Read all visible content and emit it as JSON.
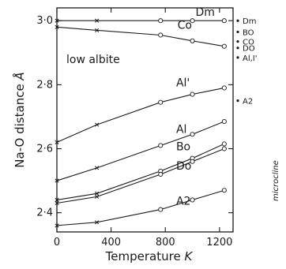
{
  "chart_data": {
    "type": "line",
    "xlabel": "Temperature",
    "xlabel_unit": "K",
    "ylabel": "Na-O distance",
    "ylabel_unit": "Å",
    "xlim": [
      0,
      1300
    ],
    "ylim": [
      2.34,
      3.04
    ],
    "x_ticks": [
      0,
      400,
      800,
      1200
    ],
    "x_tick_labels": [
      "0",
      "400",
      "800",
      "1200"
    ],
    "y_ticks": [
      2.4,
      2.6,
      2.8,
      3.0
    ],
    "y_tick_labels": [
      "2·4",
      "2·6",
      "2·8",
      "3·0"
    ],
    "annotation": "low albite",
    "right_axis_label": "microcline",
    "x": [
      0,
      295,
      765,
      1000,
      1235
    ],
    "series": [
      {
        "name": "Dm",
        "values": [
          3.0,
          3.0,
          3.0,
          3.0,
          3.0
        ],
        "markers": [
          "x",
          "x",
          "o",
          "o",
          "o"
        ]
      },
      {
        "name": "Co",
        "values": [
          2.98,
          2.97,
          2.955,
          2.937,
          2.92
        ],
        "markers": [
          "x",
          "x",
          "o",
          "o",
          "o"
        ]
      },
      {
        "name": "Al'",
        "values": [
          2.62,
          2.675,
          2.745,
          2.77,
          2.79
        ],
        "markers": [
          "x",
          "x",
          "o",
          "o",
          "o"
        ]
      },
      {
        "name": "Al",
        "values": [
          2.5,
          2.54,
          2.61,
          2.645,
          2.685
        ],
        "markers": [
          "x",
          "x",
          "o",
          "o",
          "o"
        ]
      },
      {
        "name": "Bo",
        "values": [
          2.44,
          2.46,
          2.53,
          2.57,
          2.615
        ],
        "markers": [
          "x",
          "x",
          "o",
          "o",
          "o"
        ]
      },
      {
        "name": "Do",
        "values": [
          2.43,
          2.45,
          2.52,
          2.56,
          2.6
        ],
        "markers": [
          "x",
          "x",
          "o",
          "o",
          "o"
        ]
      },
      {
        "name": "A2",
        "values": [
          2.36,
          2.37,
          2.41,
          2.44,
          2.47
        ],
        "markers": [
          "x",
          "x",
          "o",
          "o",
          "o"
        ]
      }
    ],
    "microcline_points": [
      {
        "label": "Dm",
        "value": 3.0
      },
      {
        "label": "BO",
        "value": 2.965
      },
      {
        "label": "CO",
        "value": 2.93
      },
      {
        "label": "DO",
        "value": 2.91
      },
      {
        "label": "Al,I'",
        "value": 2.88
      },
      {
        "label": "A2",
        "value": 2.75
      }
    ]
  }
}
